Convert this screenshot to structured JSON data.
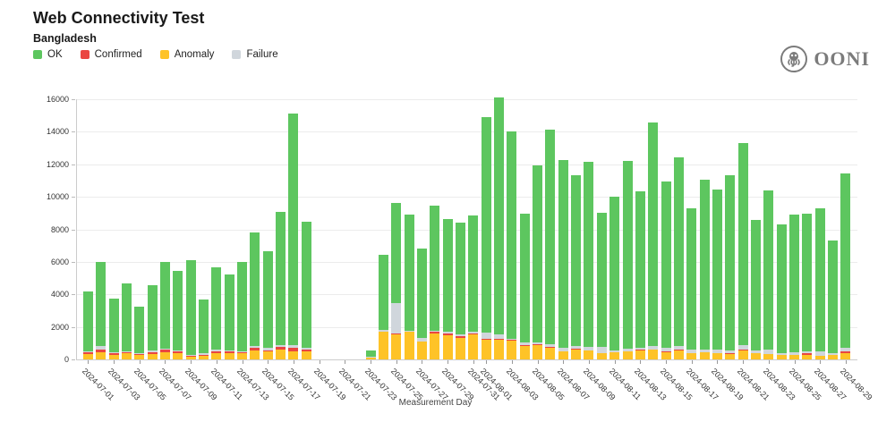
{
  "header": {
    "title": "Web Connectivity Test",
    "subtitle": "Bangladesh"
  },
  "logo": {
    "text": "OONI"
  },
  "legend": [
    {
      "label": "OK",
      "color": "#5dc65f"
    },
    {
      "label": "Confirmed",
      "color": "#ea4641"
    },
    {
      "label": "Anomaly",
      "color": "#fec327"
    },
    {
      "label": "Failure",
      "color": "#d0d6dc"
    }
  ],
  "chart_data": {
    "type": "bar",
    "stacked": true,
    "title": "Web Connectivity Test",
    "subtitle": "Bangladesh",
    "xlabel": "Measurement Day",
    "ylabel": "",
    "ylim": [
      0,
      16000
    ],
    "yticks": [
      0,
      2000,
      4000,
      6000,
      8000,
      10000,
      12000,
      14000,
      16000
    ],
    "grid": true,
    "legend_position": "top-left",
    "categories": [
      "2024-07-01",
      "2024-07-02",
      "2024-07-03",
      "2024-07-04",
      "2024-07-05",
      "2024-07-06",
      "2024-07-07",
      "2024-07-08",
      "2024-07-09",
      "2024-07-10",
      "2024-07-11",
      "2024-07-12",
      "2024-07-13",
      "2024-07-14",
      "2024-07-15",
      "2024-07-16",
      "2024-07-17",
      "2024-07-18",
      "2024-07-19",
      "2024-07-20",
      "2024-07-21",
      "2024-07-22",
      "2024-07-23",
      "2024-07-24",
      "2024-07-25",
      "2024-07-26",
      "2024-07-27",
      "2024-07-28",
      "2024-07-29",
      "2024-07-30",
      "2024-07-31",
      "2024-08-01",
      "2024-08-02",
      "2024-08-03",
      "2024-08-04",
      "2024-08-05",
      "2024-08-06",
      "2024-08-07",
      "2024-08-08",
      "2024-08-09",
      "2024-08-10",
      "2024-08-11",
      "2024-08-12",
      "2024-08-13",
      "2024-08-14",
      "2024-08-15",
      "2024-08-16",
      "2024-08-17",
      "2024-08-18",
      "2024-08-19",
      "2024-08-20",
      "2024-08-21",
      "2024-08-22",
      "2024-08-23",
      "2024-08-24",
      "2024-08-25",
      "2024-08-26",
      "2024-08-27",
      "2024-08-28",
      "2024-08-29"
    ],
    "tick_labels": [
      "2024-07-01",
      "2024-07-03",
      "2024-07-05",
      "2024-07-07",
      "2024-07-09",
      "2024-07-11",
      "2024-07-13",
      "2024-07-15",
      "2024-07-17",
      "2024-07-19",
      "2024-07-21",
      "2024-07-23",
      "2024-07-25",
      "2024-07-27",
      "2024-07-29",
      "2024-07-31",
      "2024-08-01",
      "2024-08-03",
      "2024-08-05",
      "2024-08-07",
      "2024-08-09",
      "2024-08-11",
      "2024-08-13",
      "2024-08-15",
      "2024-08-17",
      "2024-08-19",
      "2024-08-21",
      "2024-08-23",
      "2024-08-25",
      "2024-08-27",
      "2024-08-29"
    ],
    "series": [
      {
        "name": "Anomaly",
        "color": "#fec327",
        "values": [
          330,
          440,
          290,
          370,
          260,
          330,
          440,
          370,
          180,
          220,
          400,
          370,
          370,
          550,
          480,
          620,
          510,
          510,
          0,
          0,
          0,
          0,
          110,
          1720,
          1540,
          1690,
          1120,
          1580,
          1470,
          1340,
          1580,
          1250,
          1210,
          1160,
          840,
          880,
          700,
          480,
          590,
          530,
          400,
          420,
          480,
          550,
          590,
          440,
          590,
          370,
          440,
          400,
          330,
          550,
          400,
          330,
          260,
          260,
          290,
          220,
          260,
          400
        ]
      },
      {
        "name": "Confirmed",
        "color": "#ea4641",
        "values": [
          140,
          150,
          90,
          110,
          70,
          110,
          150,
          110,
          70,
          50,
          110,
          150,
          70,
          150,
          70,
          150,
          220,
          70,
          0,
          0,
          0,
          0,
          0,
          0,
          30,
          0,
          0,
          110,
          110,
          70,
          30,
          40,
          30,
          40,
          40,
          60,
          70,
          0,
          70,
          0,
          0,
          0,
          0,
          70,
          0,
          30,
          40,
          0,
          0,
          0,
          70,
          40,
          0,
          0,
          0,
          0,
          70,
          0,
          0,
          110
        ]
      },
      {
        "name": "Failure",
        "color": "#d0d6dc",
        "values": [
          30,
          220,
          40,
          40,
          30,
          110,
          50,
          70,
          40,
          110,
          70,
          40,
          70,
          110,
          180,
          110,
          150,
          150,
          0,
          0,
          0,
          0,
          40,
          90,
          1900,
          90,
          220,
          90,
          150,
          150,
          90,
          370,
          280,
          80,
          180,
          100,
          150,
          220,
          150,
          220,
          370,
          150,
          180,
          70,
          220,
          260,
          180,
          220,
          180,
          180,
          150,
          290,
          150,
          260,
          150,
          180,
          110,
          260,
          150,
          180
        ]
      },
      {
        "name": "OK",
        "color": "#5dc65f",
        "values": [
          3680,
          5180,
          3320,
          4150,
          2880,
          4010,
          5350,
          4890,
          5810,
          3300,
          5080,
          4660,
          5490,
          6990,
          5920,
          8170,
          14240,
          7750,
          0,
          0,
          0,
          0,
          400,
          4620,
          6150,
          7120,
          5480,
          7680,
          6900,
          6850,
          7150,
          13240,
          14580,
          12740,
          7900,
          10890,
          13210,
          11560,
          10490,
          11400,
          8230,
          9430,
          11540,
          9640,
          13740,
          10190,
          11610,
          8700,
          10430,
          9850,
          10790,
          12420,
          8040,
          9800,
          7890,
          8480,
          8490,
          8830,
          6900,
          10760
        ]
      }
    ]
  }
}
